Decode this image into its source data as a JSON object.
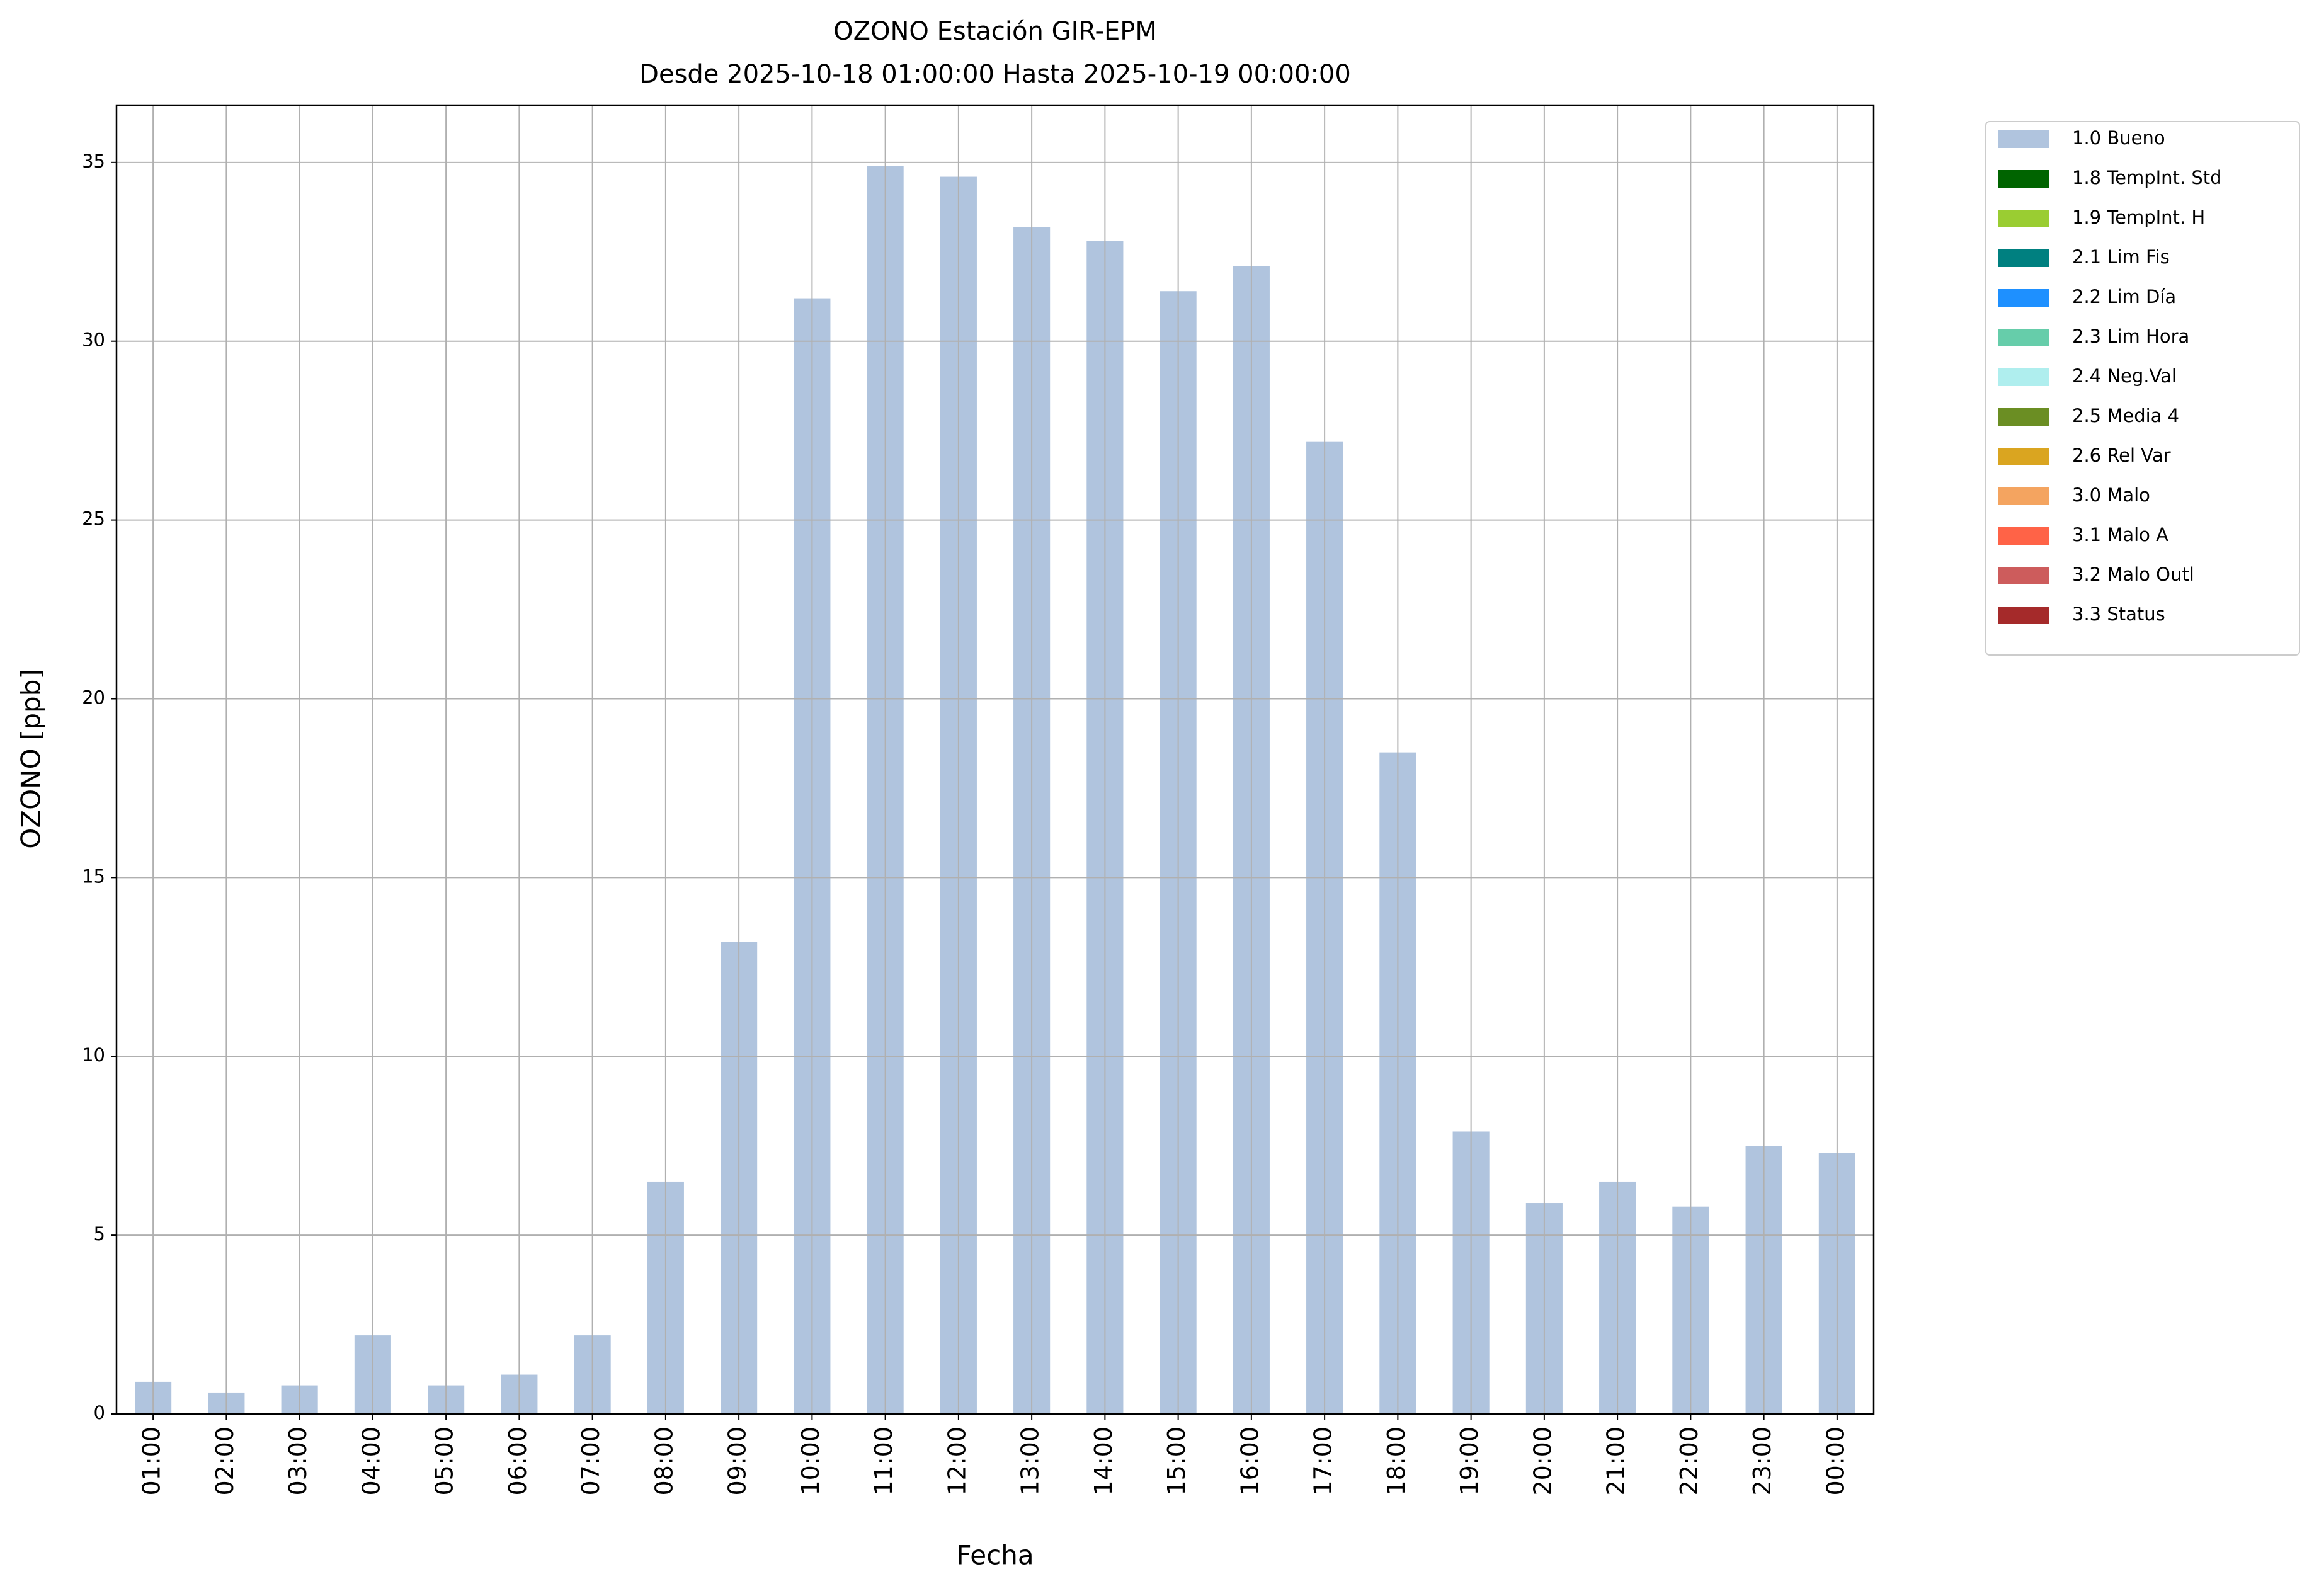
{
  "chart_data": {
    "type": "bar",
    "stacked": true,
    "title": "OZONO Estación GIR-EPM",
    "subtitle": "Desde 2025-10-18 01:00:00 Hasta 2025-10-19 00:00:00",
    "x_label": "Fecha",
    "y_label": "OZONO [ppb]",
    "categories": [
      "01:00",
      "02:00",
      "03:00",
      "04:00",
      "05:00",
      "06:00",
      "07:00",
      "08:00",
      "09:00",
      "10:00",
      "11:00",
      "12:00",
      "13:00",
      "14:00",
      "15:00",
      "16:00",
      "17:00",
      "18:00",
      "19:00",
      "20:00",
      "21:00",
      "22:00",
      "23:00",
      "00:00"
    ],
    "series": [
      {
        "name": "1.0 Bueno",
        "color": "#b0c4de",
        "values": [
          0.9,
          0.6,
          0.8,
          2.2,
          0.8,
          1.1,
          2.2,
          6.5,
          13.2,
          31.2,
          34.9,
          34.6,
          33.2,
          32.8,
          31.4,
          32.1,
          27.2,
          18.5,
          7.9,
          5.9,
          6.5,
          5.8,
          7.5,
          7.3
        ]
      },
      {
        "name": "1.8 TempInt. Std",
        "color": "#006400",
        "values": [
          0,
          0,
          0,
          0,
          0,
          0,
          0,
          0,
          0,
          0,
          0,
          0,
          0,
          0,
          0,
          0,
          0,
          0,
          0,
          0,
          0,
          0,
          0,
          0
        ]
      },
      {
        "name": "1.9 TempInt. H",
        "color": "#9acd32",
        "values": [
          0,
          0,
          0,
          0,
          0,
          0,
          0,
          0,
          0,
          0,
          0,
          0,
          0,
          0,
          0,
          0,
          0,
          0,
          0,
          0,
          0,
          0,
          0,
          0
        ]
      },
      {
        "name": "2.1 Lim Fis",
        "color": "#008080",
        "values": [
          0,
          0,
          0,
          0,
          0,
          0,
          0,
          0,
          0,
          0,
          0,
          0,
          0,
          0,
          0,
          0,
          0,
          0,
          0,
          0,
          0,
          0,
          0,
          0
        ]
      },
      {
        "name": "2.2 Lim Día",
        "color": "#1e90ff",
        "values": [
          0,
          0,
          0,
          0,
          0,
          0,
          0,
          0,
          0,
          0,
          0,
          0,
          0,
          0,
          0,
          0,
          0,
          0,
          0,
          0,
          0,
          0,
          0,
          0
        ]
      },
      {
        "name": "2.3 Lim Hora",
        "color": "#66cdaa",
        "values": [
          0,
          0,
          0,
          0,
          0,
          0,
          0,
          0,
          0,
          0,
          0,
          0,
          0,
          0,
          0,
          0,
          0,
          0,
          0,
          0,
          0,
          0,
          0,
          0
        ]
      },
      {
        "name": "2.4 Neg.Val",
        "color": "#afeeee",
        "values": [
          0,
          0,
          0,
          0,
          0,
          0,
          0,
          0,
          0,
          0,
          0,
          0,
          0,
          0,
          0,
          0,
          0,
          0,
          0,
          0,
          0,
          0,
          0,
          0
        ]
      },
      {
        "name": "2.5 Media 4",
        "color": "#6b8e23",
        "values": [
          0,
          0,
          0,
          0,
          0,
          0,
          0,
          0,
          0,
          0,
          0,
          0,
          0,
          0,
          0,
          0,
          0,
          0,
          0,
          0,
          0,
          0,
          0,
          0
        ]
      },
      {
        "name": "2.6 Rel Var",
        "color": "#daa520",
        "values": [
          0,
          0,
          0,
          0,
          0,
          0,
          0,
          0,
          0,
          0,
          0,
          0,
          0,
          0,
          0,
          0,
          0,
          0,
          0,
          0,
          0,
          0,
          0,
          0
        ]
      },
      {
        "name": "3.0 Malo",
        "color": "#f4a460",
        "values": [
          0,
          0,
          0,
          0,
          0,
          0,
          0,
          0,
          0,
          0,
          0,
          0,
          0,
          0,
          0,
          0,
          0,
          0,
          0,
          0,
          0,
          0,
          0,
          0
        ]
      },
      {
        "name": "3.1 Malo A",
        "color": "#ff6347",
        "values": [
          0,
          0,
          0,
          0,
          0,
          0,
          0,
          0,
          0,
          0,
          0,
          0,
          0,
          0,
          0,
          0,
          0,
          0,
          0,
          0,
          0,
          0,
          0,
          0
        ]
      },
      {
        "name": "3.2 Malo Outl",
        "color": "#cd5c5c",
        "values": [
          0,
          0,
          0,
          0,
          0,
          0,
          0,
          0,
          0,
          0,
          0,
          0,
          0,
          0,
          0,
          0,
          0,
          0,
          0,
          0,
          0,
          0,
          0,
          0
        ]
      },
      {
        "name": "3.3 Status",
        "color": "#a52a2a",
        "values": [
          0,
          0,
          0,
          0,
          0,
          0,
          0,
          0,
          0,
          0,
          0,
          0,
          0,
          0,
          0,
          0,
          0,
          0,
          0,
          0,
          0,
          0,
          0,
          0
        ]
      }
    ],
    "ylim": [
      0,
      36.6
    ],
    "yticks": [
      0,
      5,
      10,
      15,
      20,
      25,
      30,
      35
    ],
    "grid": true,
    "legend": "outside upper right"
  }
}
